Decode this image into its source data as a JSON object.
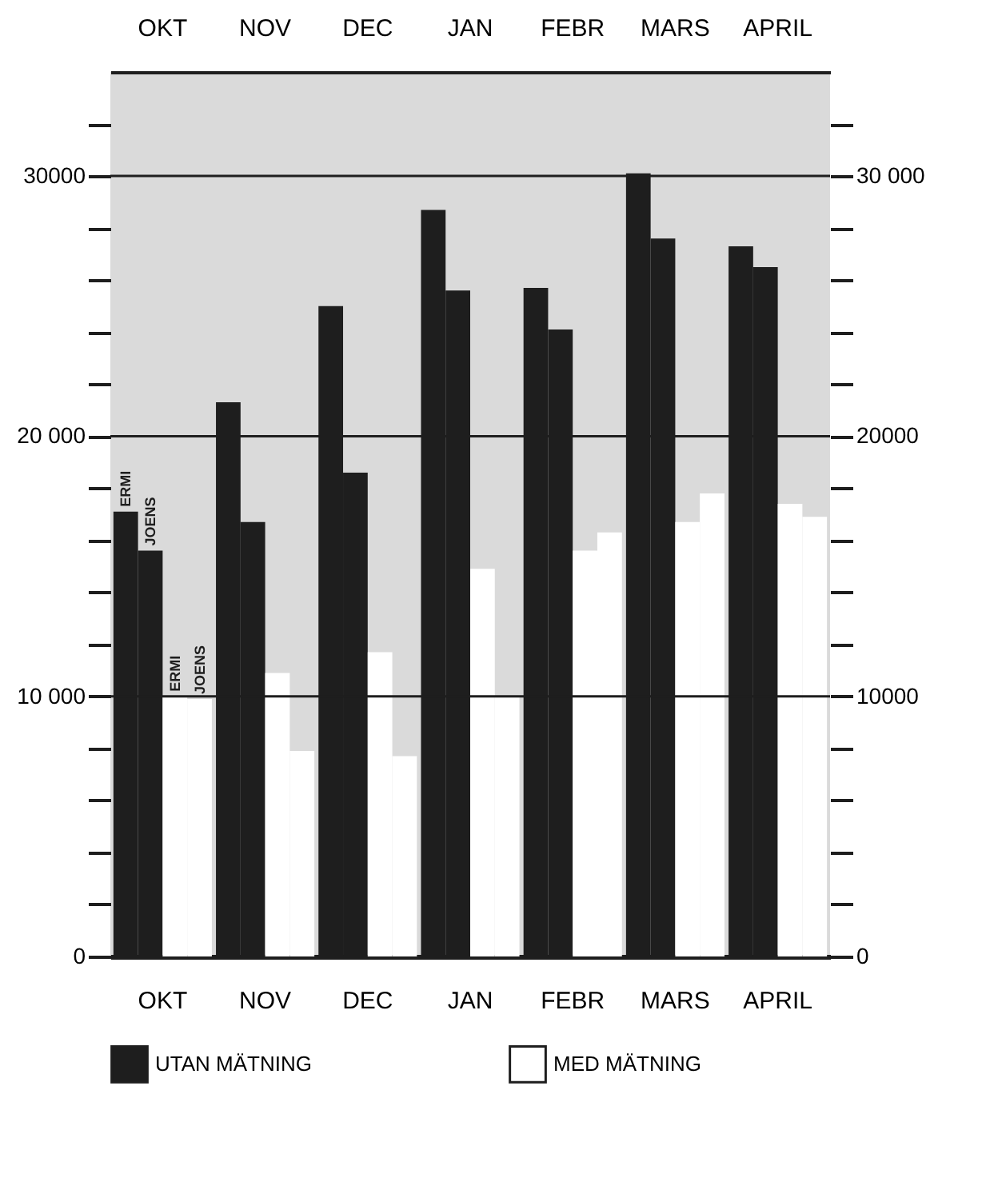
{
  "chart_data": {
    "type": "bar",
    "categories": [
      "OKT",
      "NOV",
      "DEC",
      "JAN",
      "FEBR",
      "MARS",
      "APRIL"
    ],
    "series": [
      {
        "name": "UTAN MÄTNING",
        "color": "#1e1e1e",
        "values": [
          17100,
          21300,
          25000,
          28700,
          25700,
          30100,
          27300
        ]
      },
      {
        "color": "#1e1e1e",
        "values": [
          15600,
          16700,
          18600,
          25600,
          24100,
          27600,
          26500
        ]
      },
      {
        "name": "MED MÄTNING",
        "color": "#ffffff",
        "values": [
          10000,
          10900,
          11700,
          14900,
          15600,
          16700,
          17400
        ]
      },
      {
        "color": "#ffffff",
        "values": [
          9900,
          7900,
          7700,
          10000,
          16300,
          17800,
          16900
        ]
      }
    ],
    "ylim": [
      0,
      34000
    ],
    "yticks": [
      0,
      {
        "value": 2000,
        "label": null
      },
      {
        "value": 4000,
        "label": null
      },
      {
        "value": 6000,
        "label": null
      },
      {
        "value": 8000,
        "label": null
      },
      {
        "value": 10000,
        "label": "10 000"
      },
      {
        "value": 12000,
        "label": null
      },
      {
        "value": 14000,
        "label": null
      },
      {
        "value": 16000,
        "label": null
      },
      {
        "value": 18000,
        "label": null
      },
      {
        "value": 20000,
        "label": "20 000"
      },
      {
        "value": 22000,
        "label": null
      },
      {
        "value": 24000,
        "label": null
      },
      {
        "value": 26000,
        "label": null
      },
      {
        "value": 28000,
        "label": null
      },
      30000,
      {
        "value": 32000,
        "label": null
      }
    ],
    "y2lim": [
      0,
      34000
    ],
    "y2ticks": [
      0,
      {
        "value": 2000,
        "label": null
      },
      {
        "value": 4000,
        "label": null
      },
      {
        "value": 6000,
        "label": null
      },
      {
        "value": 8000,
        "label": null
      },
      10000,
      {
        "value": 12000,
        "label": null
      },
      {
        "value": 14000,
        "label": null
      },
      {
        "value": 16000,
        "label": null
      },
      {
        "value": 18000,
        "label": null
      },
      20000,
      {
        "value": 22000,
        "label": null
      },
      {
        "value": 24000,
        "label": null
      },
      {
        "value": 26000,
        "label": null
      },
      {
        "value": 28000,
        "label": null
      },
      {
        "value": 30000,
        "label": "30 000"
      },
      {
        "value": 32000,
        "label": null
      }
    ],
    "annotations": [
      "ERMI",
      "JOENS",
      "ERMI",
      "JOENS"
    ],
    "grid": "y",
    "legend": "bottom"
  }
}
